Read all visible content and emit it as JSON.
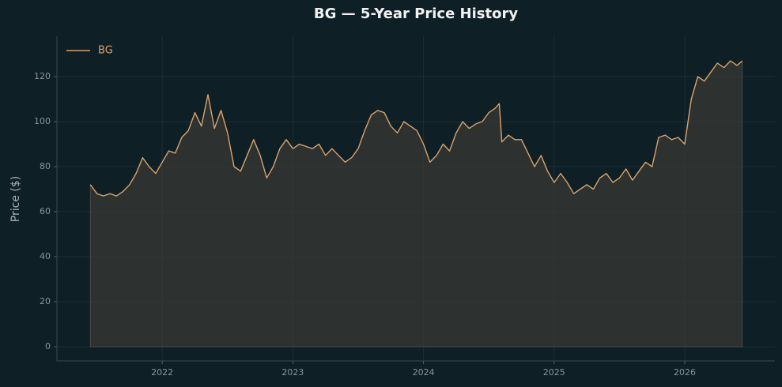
{
  "chart_data": {
    "type": "line",
    "title": "BG — 5-Year Price History",
    "ylabel": "Price ($)",
    "x": [
      2021.45,
      2021.5,
      2021.55,
      2021.6,
      2021.65,
      2021.7,
      2021.75,
      2021.8,
      2021.85,
      2021.9,
      2021.95,
      2022.0,
      2022.05,
      2022.1,
      2022.15,
      2022.2,
      2022.25,
      2022.3,
      2022.35,
      2022.4,
      2022.45,
      2022.5,
      2022.55,
      2022.6,
      2022.65,
      2022.7,
      2022.75,
      2022.8,
      2022.85,
      2022.9,
      2022.95,
      2023.0,
      2023.05,
      2023.1,
      2023.15,
      2023.2,
      2023.25,
      2023.3,
      2023.35,
      2023.4,
      2023.45,
      2023.5,
      2023.55,
      2023.6,
      2023.65,
      2023.7,
      2023.75,
      2023.8,
      2023.85,
      2023.9,
      2023.95,
      2024.0,
      2024.05,
      2024.1,
      2024.15,
      2024.2,
      2024.25,
      2024.3,
      2024.35,
      2024.4,
      2024.45,
      2024.5,
      2024.55,
      2024.58,
      2024.6,
      2024.65,
      2024.7,
      2024.75,
      2024.8,
      2024.85,
      2024.9,
      2024.95,
      2025.0,
      2025.05,
      2025.1,
      2025.15,
      2025.2,
      2025.25,
      2025.3,
      2025.35,
      2025.4,
      2025.45,
      2025.5,
      2025.55,
      2025.6,
      2025.65,
      2025.7,
      2025.75,
      2025.8,
      2025.85,
      2025.9,
      2025.95,
      2026.0,
      2026.05,
      2026.1,
      2026.15,
      2026.2,
      2026.25,
      2026.3,
      2026.35,
      2026.4,
      2026.44
    ],
    "series": [
      {
        "name": "BG",
        "color": "#d9a26a",
        "values": [
          72,
          68,
          67,
          68,
          67,
          69,
          72,
          77,
          84,
          80,
          77,
          82,
          87,
          86,
          93,
          96,
          104,
          98,
          112,
          97,
          105,
          95,
          80,
          78,
          85,
          92,
          85,
          75,
          80,
          88,
          92,
          88,
          90,
          89,
          88,
          90,
          85,
          88,
          85,
          82,
          84,
          88,
          96,
          103,
          105,
          104,
          98,
          95,
          100,
          98,
          96,
          90,
          82,
          85,
          90,
          87,
          95,
          100,
          97,
          99,
          100,
          104,
          106,
          108,
          91,
          94,
          92,
          92,
          86,
          80,
          85,
          78,
          73,
          77,
          73,
          68,
          70,
          72,
          70,
          75,
          77,
          73,
          75,
          79,
          74,
          78,
          82,
          80,
          93,
          94,
          92,
          93,
          90,
          110,
          120,
          118,
          122,
          126,
          124,
          127,
          125,
          127
        ]
      }
    ],
    "xlim": [
      2021.194,
      2026.69
    ],
    "ylim": [
      -6.3,
      137.9
    ],
    "xticks": [
      2022,
      2023,
      2024,
      2025,
      2026
    ],
    "yticks": [
      0,
      20,
      40,
      60,
      80,
      100,
      120
    ],
    "grid": true,
    "legend": "upper left",
    "fill": true
  }
}
